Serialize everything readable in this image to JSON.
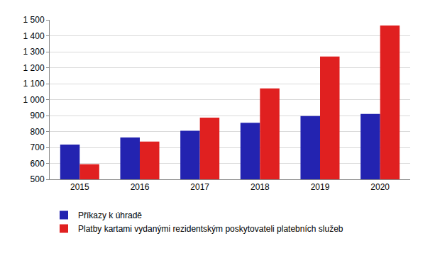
{
  "chart_data": {
    "type": "bar",
    "categories": [
      "2015",
      "2016",
      "2017",
      "2018",
      "2019",
      "2020"
    ],
    "series": [
      {
        "name": "Příkazy k úhradě",
        "color": "#2323b0",
        "values": [
          718,
          762,
          805,
          855,
          897,
          910
        ]
      },
      {
        "name": "Platby kartami vydanými rezidentským poskytovateli platebních služeb",
        "color": "#e02020",
        "values": [
          595,
          737,
          887,
          1070,
          1270,
          1465
        ]
      }
    ],
    "ylim": [
      500,
      1500
    ],
    "yticks": [
      500,
      600,
      700,
      800,
      900,
      {
        "value": 1000,
        "label": "1 000"
      },
      {
        "value": 1100,
        "label": "1 100"
      },
      {
        "value": 1200,
        "label": "1 200"
      },
      {
        "value": 1300,
        "label": "1 300"
      },
      {
        "value": 1400,
        "label": "1 400"
      },
      {
        "value": 1500,
        "label": "1 500"
      }
    ],
    "grid": true,
    "legend": "bottom"
  }
}
